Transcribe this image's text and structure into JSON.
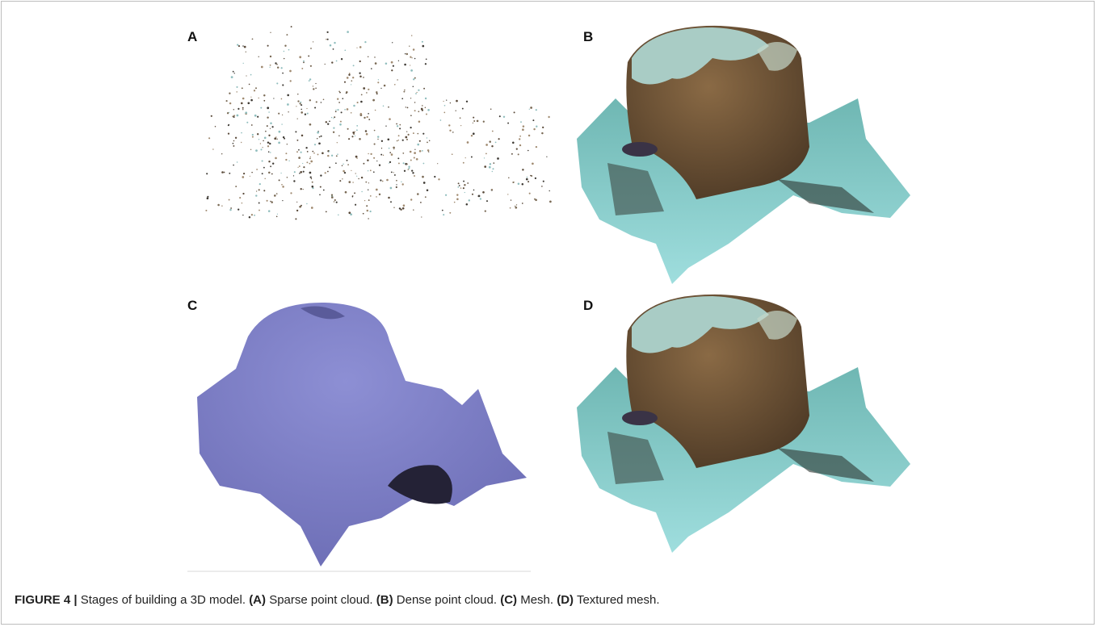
{
  "figure": {
    "panels": [
      {
        "label": "A"
      },
      {
        "label": "B"
      },
      {
        "label": "C"
      },
      {
        "label": "D"
      }
    ],
    "caption": {
      "label": "FIGURE 4 |",
      "text": "Stages of building a 3D model.",
      "items": [
        {
          "tag": "(A)",
          "text": "Sparse point cloud."
        },
        {
          "tag": "(B)",
          "text": "Dense point cloud."
        },
        {
          "tag": "(C)",
          "text": "Mesh."
        },
        {
          "tag": "(D)",
          "text": "Textured mesh."
        }
      ]
    }
  }
}
